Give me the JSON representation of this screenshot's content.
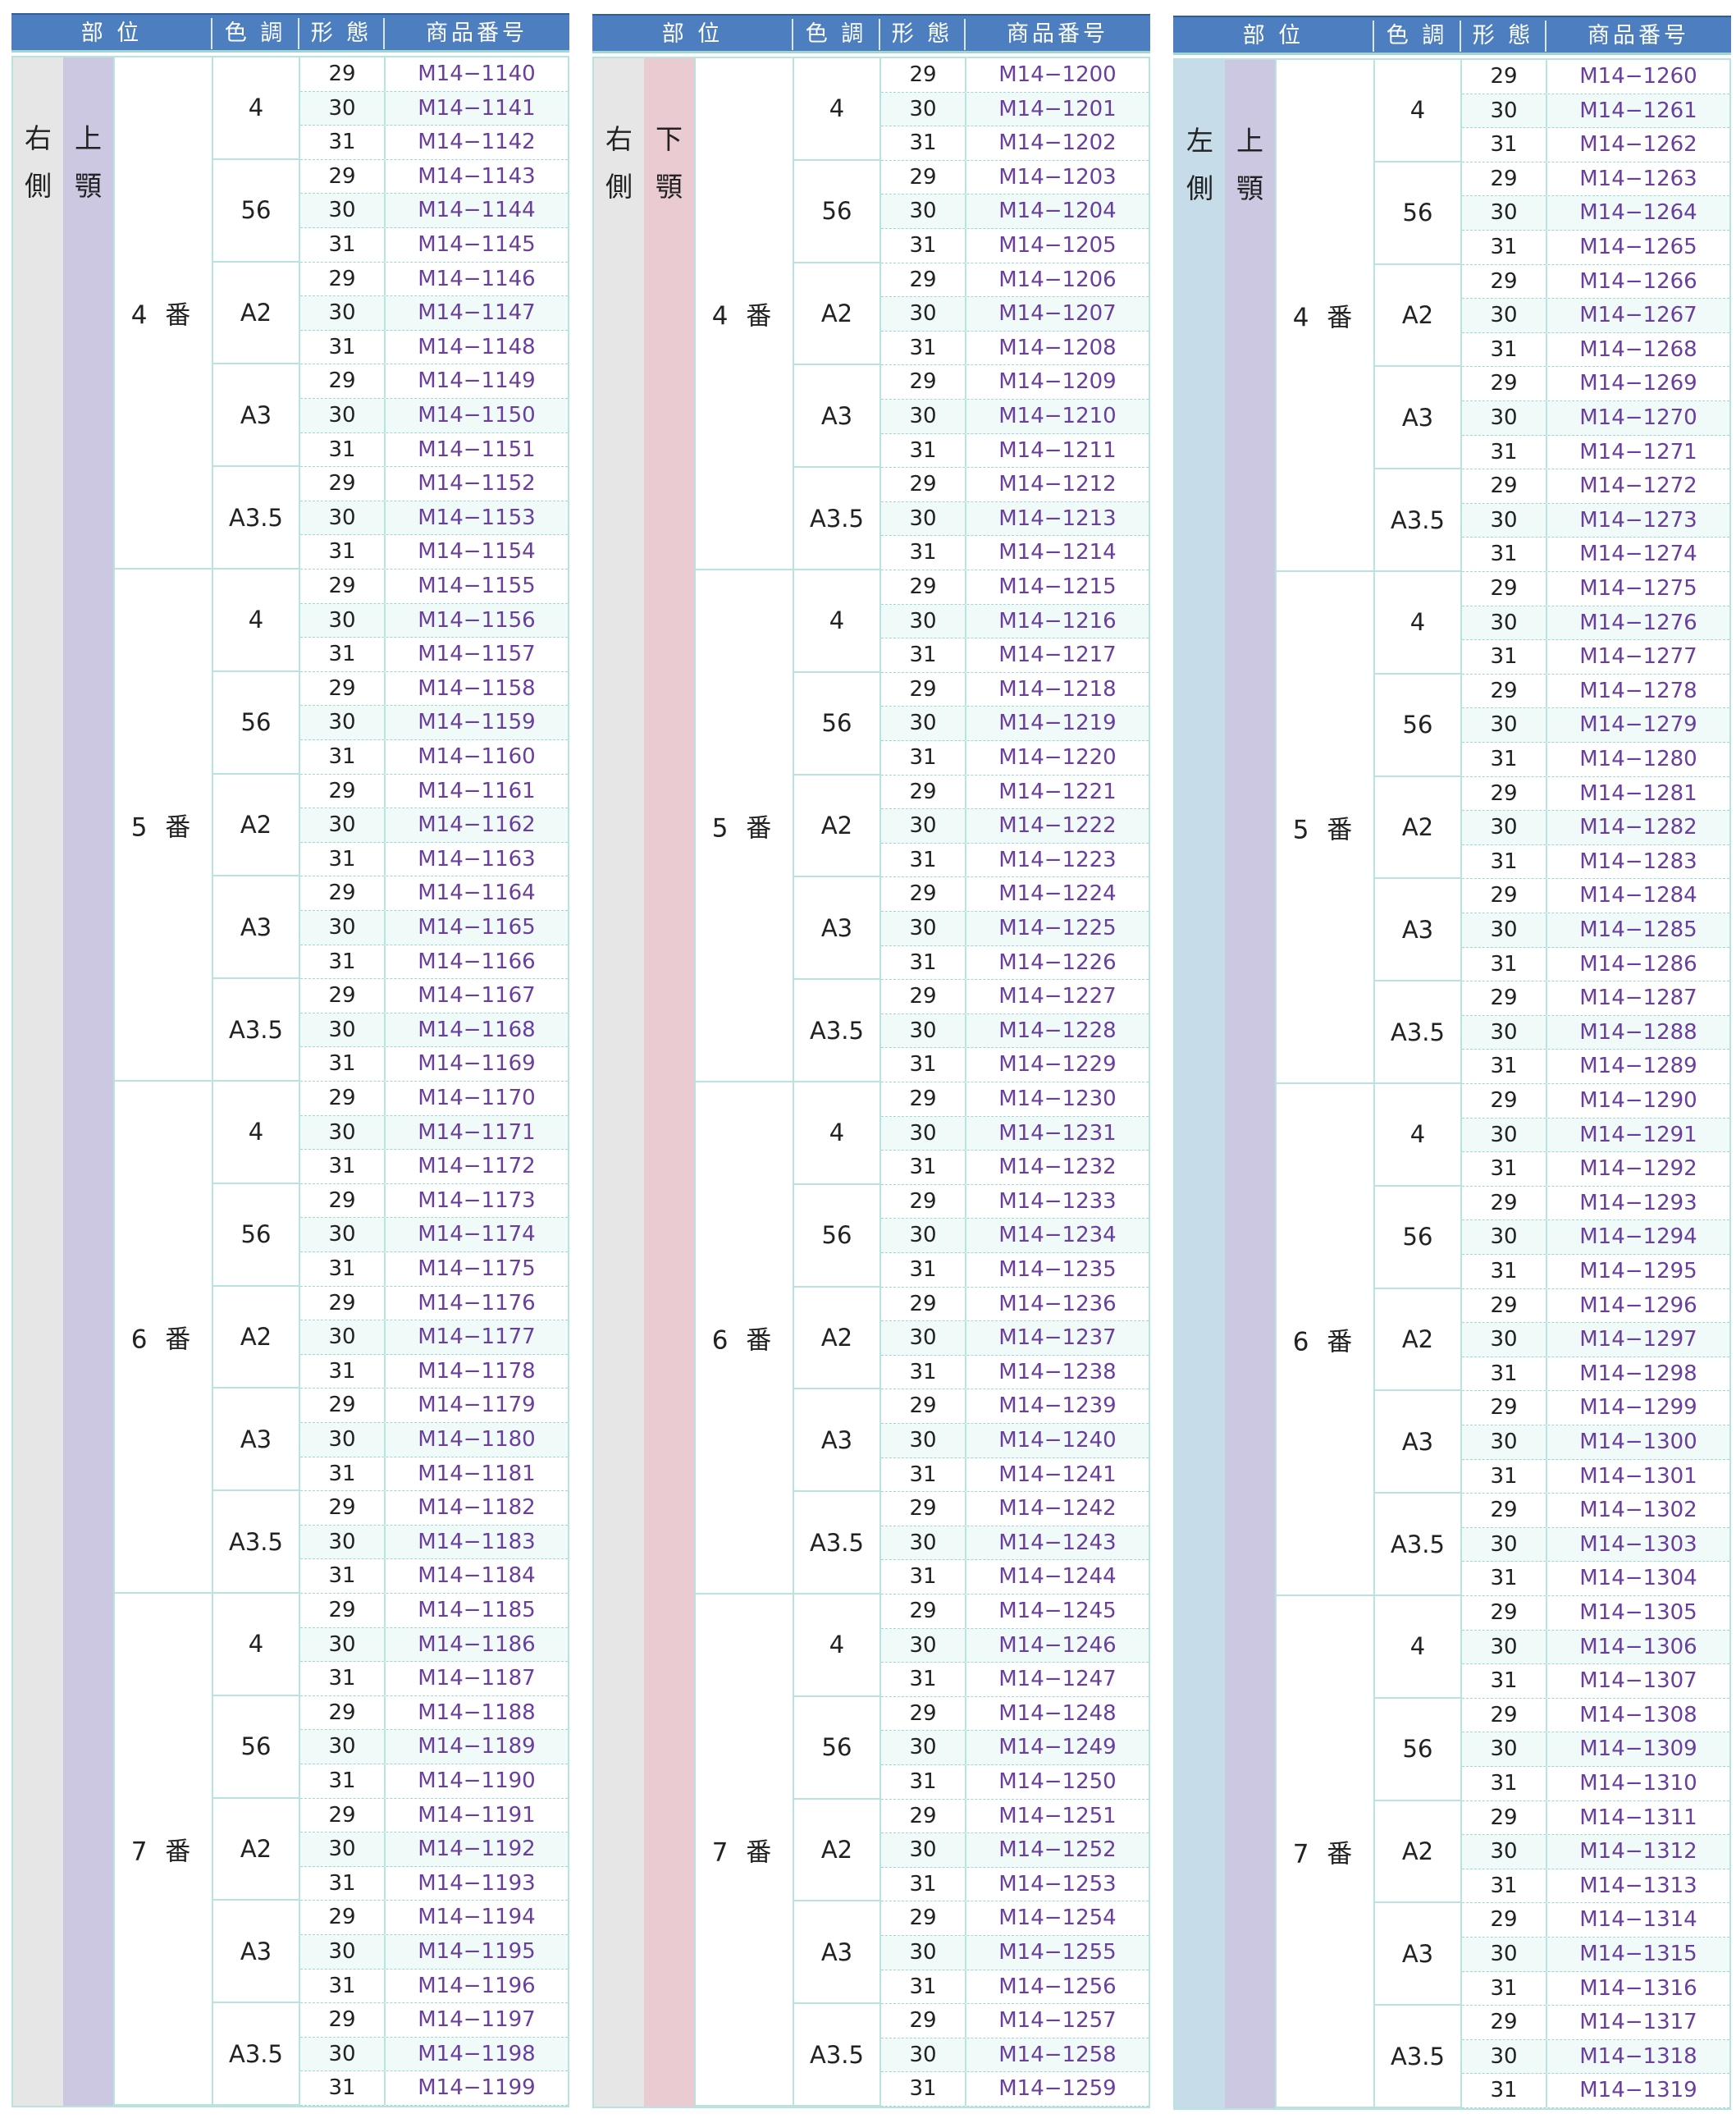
{
  "headers": {
    "part": "部 位",
    "shade": "色 調",
    "form": "形 態",
    "code": "商品番号"
  },
  "tables": [
    {
      "side": "右\n側",
      "jaw": "上\n顎",
      "start": 1140,
      "side_color": "#e6e6e6",
      "jaw_color": "#ccc8e2",
      "teeth": [
        "4 番",
        "5 番",
        "6 番",
        "7 番"
      ]
    },
    {
      "side": "右\n側",
      "jaw": "下\n顎",
      "start": 1200,
      "side_color": "#e6e6e6",
      "jaw_color": "#eacbd1",
      "teeth": [
        "4 番",
        "5 番",
        "6 番",
        "7 番"
      ]
    },
    {
      "side": "左\n側",
      "jaw": "上\n顎",
      "start": 1260,
      "side_color": "#c6dce9",
      "jaw_color": "#ccc8e2",
      "teeth": [
        "4 番",
        "5 番",
        "6 番",
        "7 番"
      ]
    }
  ],
  "shades": [
    "4",
    "56",
    "A2",
    "A3",
    "A3.5"
  ],
  "sizes": [
    "29",
    "30",
    "31"
  ],
  "code_prefix": "M14−"
}
